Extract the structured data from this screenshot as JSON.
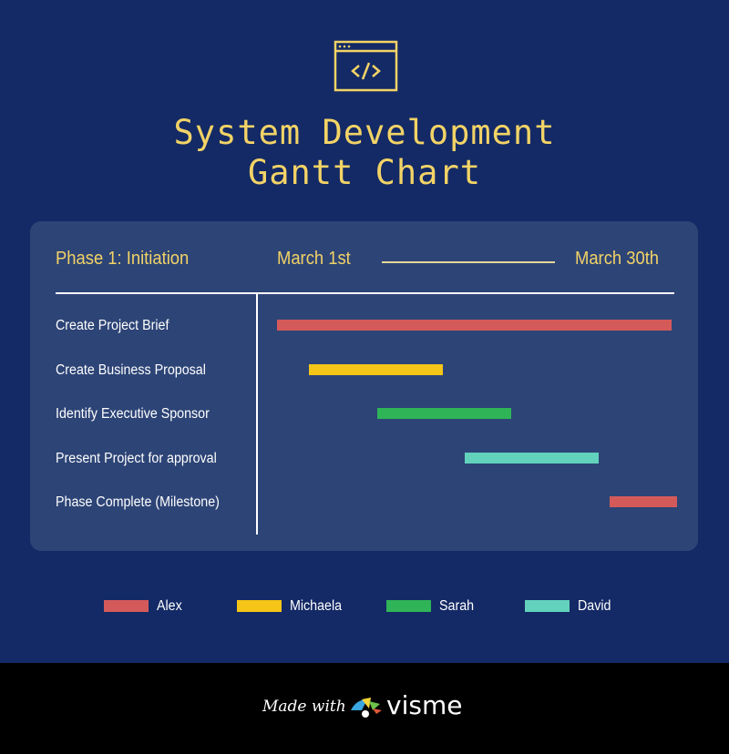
{
  "header": {
    "title_line1": "System Development",
    "title_line2": "Gantt Chart",
    "icon": "code-window-icon"
  },
  "chart_data": {
    "type": "gantt",
    "phase_label": "Phase 1: Initiation",
    "range_start_label": "March 1st",
    "range_end_label": "March 30th",
    "xlim_days": [
      1,
      30
    ],
    "tasks": [
      {
        "name": "Create Project Brief",
        "start_day": 1,
        "end_day": 29.8,
        "owner": "Alex"
      },
      {
        "name": "Create Business Proposal",
        "start_day": 3.3,
        "end_day": 13.1,
        "owner": "Michaela"
      },
      {
        "name": "Identify Executive Sponsor",
        "start_day": 8.3,
        "end_day": 18.1,
        "owner": "Sarah"
      },
      {
        "name": "Present Project for approval",
        "start_day": 14.7,
        "end_day": 24.5,
        "owner": "David"
      },
      {
        "name": "Phase Complete (Milestone)",
        "start_day": 25.3,
        "end_day": 30.2,
        "owner": "Alex"
      }
    ],
    "legend": [
      {
        "name": "Alex",
        "color": "#d45a5a"
      },
      {
        "name": "Michaela",
        "color": "#f5c518"
      },
      {
        "name": "Sarah",
        "color": "#2fb457"
      },
      {
        "name": "David",
        "color": "#62d2bd"
      }
    ]
  },
  "footer": {
    "made_with": "Made with",
    "brand": "visme"
  }
}
